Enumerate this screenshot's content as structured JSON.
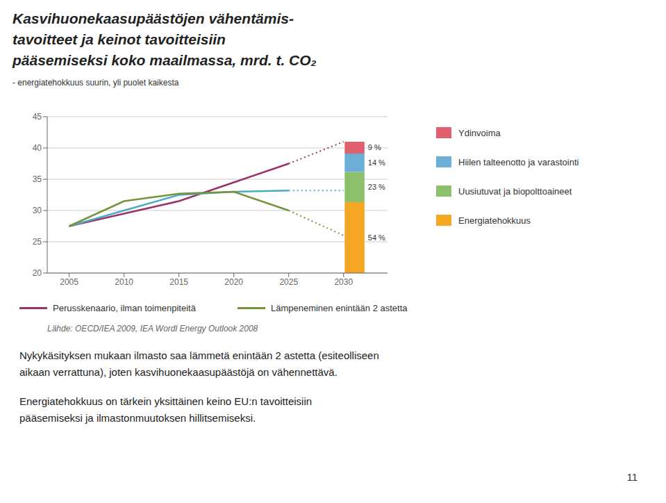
{
  "chart_data": {
    "type": "line",
    "title": "Kasvihuonekaasupäästöjen vähentämis-\ntavoitteet ja keinot tavoitteisiin\npääsemiseksi koko maailmassa, mrd. t. CO₂",
    "subtitle": "- energiatehokkuus suurin, yli puolet kaikesta",
    "x": [
      2005,
      2010,
      2015,
      2020,
      2025,
      2030
    ],
    "xlim": [
      2003,
      2034
    ],
    "xticks": [
      2005,
      2010,
      2015,
      2020,
      2025,
      2030
    ],
    "ylim": [
      20,
      45
    ],
    "yticks": [
      20,
      25,
      30,
      35,
      40,
      45
    ],
    "grid": true,
    "series": [
      {
        "name": "Perusskenaario, ilman toimenpiteitä",
        "color": "#993366",
        "line_style": "solid",
        "values": [
          27.5,
          29.5,
          31.5,
          34.5,
          37.5,
          null
        ]
      },
      {
        "color": "#4bacc6",
        "line_style": "solid",
        "values": [
          27.5,
          30.0,
          32.5,
          33.0,
          33.2,
          null
        ]
      },
      {
        "name": "Lämpeneminen enintään 2 astetta",
        "color": "#76923c",
        "line_style": "solid",
        "values": [
          27.5,
          31.5,
          32.7,
          33.0,
          30.0,
          null
        ]
      },
      {
        "color": "#993366",
        "line_style": "dotted",
        "values": [
          null,
          null,
          null,
          null,
          37.5,
          41.0
        ]
      },
      {
        "color": "#4bacc6",
        "line_style": "dotted",
        "values": [
          null,
          null,
          null,
          null,
          33.2,
          33.2
        ]
      },
      {
        "color": "#76923c",
        "line_style": "dotted",
        "values": [
          null,
          null,
          null,
          null,
          30.0,
          26.0
        ]
      }
    ],
    "bar_range": [
      20.0,
      41.0
    ],
    "bar_segments": [
      {
        "name": "Energiatehokkuus",
        "color": "#f5a623",
        "value": 54,
        "value_label": "54 %"
      },
      {
        "name": "Uusiutuvat ja biopolttoaineet",
        "color": "#8dc06a",
        "value": 23,
        "value_label": "23 %"
      },
      {
        "name": "Hiilen talteenotto ja varastointi",
        "color": "#6baed6",
        "value": 14,
        "value_label": "14 %"
      },
      {
        "name": "Ydinvoima",
        "color": "#e06070",
        "value": 9,
        "value_label": "9 %"
      }
    ],
    "source": "Lähde: OECD/IEA 2009, IEA Wordl Energy Outlook 2008",
    "body": [
      [
        "Nykykäsityksen mukaan ilmasto saa lämmetä enintään 2 astetta (esiteolliseen",
        "aikaan verrattuna), joten kasvihuonekaasupäästöjä on vähennettävä."
      ],
      [
        "Energiatehokkuus on tärkein yksittäinen keino EU:n tavoitteisiin",
        "pääsemiseksi ja ilmastonmuutoksen hillitsemiseksi."
      ]
    ],
    "page": "11"
  }
}
